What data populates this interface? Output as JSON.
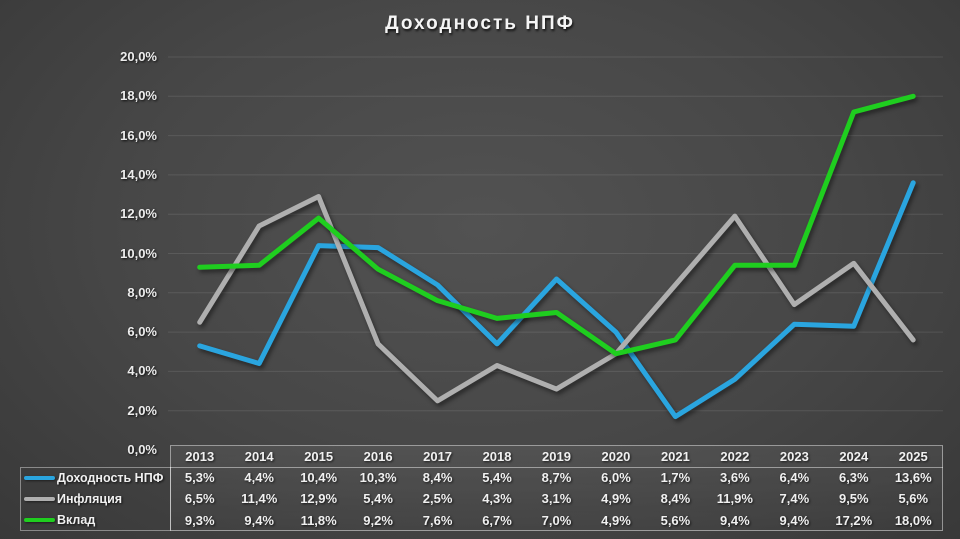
{
  "title": "Доходность НПФ",
  "chart_data": {
    "type": "line",
    "title": "Доходность НПФ",
    "categories": [
      "2013",
      "2014",
      "2015",
      "2016",
      "2017",
      "2018",
      "2019",
      "2020",
      "2021",
      "2022",
      "2023",
      "2024",
      "2025"
    ],
    "series": [
      {
        "name": "Доходность НПФ",
        "color": "#2AA5DF",
        "values": [
          5.3,
          4.4,
          10.4,
          10.3,
          8.4,
          5.4,
          8.7,
          6.0,
          1.7,
          3.6,
          6.4,
          6.3,
          13.6
        ],
        "labels": [
          "5,3%",
          "4,4%",
          "10,4%",
          "10,3%",
          "8,4%",
          "5,4%",
          "8,7%",
          "6,0%",
          "1,7%",
          "3,6%",
          "6,4%",
          "6,3%",
          "13,6%"
        ]
      },
      {
        "name": "Инфляция",
        "color": "#AFAFAF",
        "values": [
          6.5,
          11.4,
          12.9,
          5.4,
          2.5,
          4.3,
          3.1,
          4.9,
          8.4,
          11.9,
          7.4,
          9.5,
          5.6
        ],
        "labels": [
          "6,5%",
          "11,4%",
          "12,9%",
          "5,4%",
          "2,5%",
          "4,3%",
          "3,1%",
          "4,9%",
          "8,4%",
          "11,9%",
          "7,4%",
          "9,5%",
          "5,6%"
        ]
      },
      {
        "name": "Вклад",
        "color": "#1FCE1F",
        "values": [
          9.3,
          9.4,
          11.8,
          9.2,
          7.6,
          6.7,
          7.0,
          4.9,
          5.6,
          9.4,
          9.4,
          17.2,
          18.0
        ],
        "labels": [
          "9,3%",
          "9,4%",
          "11,8%",
          "9,2%",
          "7,6%",
          "6,7%",
          "7,0%",
          "4,9%",
          "5,6%",
          "9,4%",
          "9,4%",
          "17,2%",
          "18,0%"
        ]
      }
    ],
    "ylim": [
      0,
      20
    ],
    "y_tick_step": 2,
    "y_tick_labels": [
      "0,0%",
      "2,0%",
      "4,0%",
      "6,0%",
      "8,0%",
      "10,0%",
      "12,0%",
      "14,0%",
      "16,0%",
      "18,0%",
      "20,0%"
    ],
    "grid": true,
    "legend_position": "table-left"
  }
}
